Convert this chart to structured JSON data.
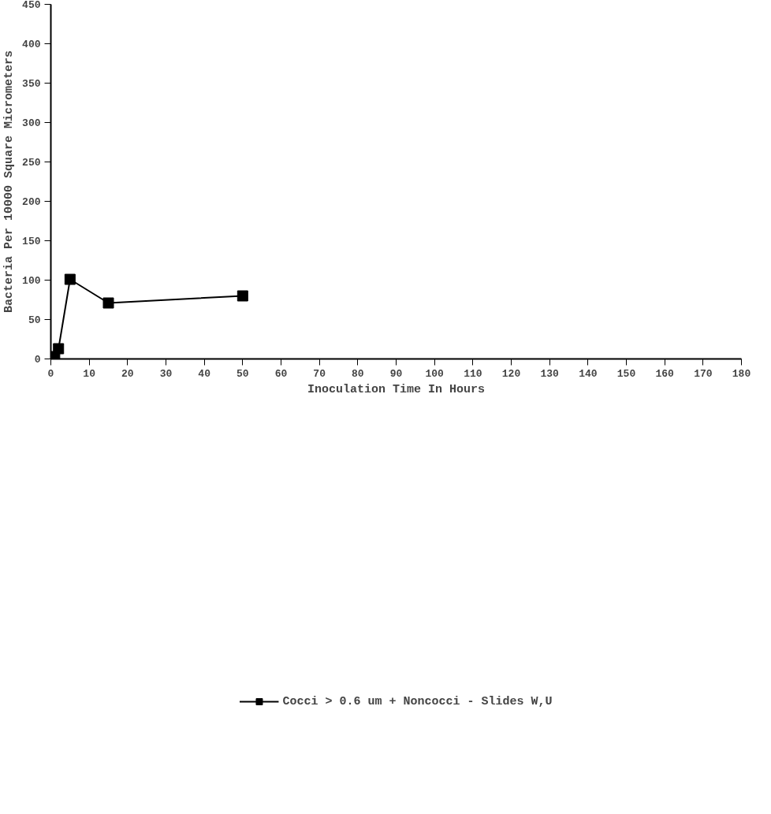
{
  "chart_data": {
    "type": "line",
    "xlabel": "Inoculation Time In Hours",
    "ylabel": "Bacteria Per 10000 Square Micrometers",
    "x": [
      1,
      2,
      5,
      15,
      50
    ],
    "series": [
      {
        "name": "Cocci > 0.6 um + Noncocci - Slides W,U",
        "color": "#000000",
        "values": [
          3,
          13,
          101,
          71,
          80
        ]
      }
    ],
    "xlim": [
      0,
      180
    ],
    "xticks": [
      0,
      10,
      20,
      30,
      40,
      50,
      60,
      70,
      80,
      90,
      100,
      110,
      120,
      130,
      140,
      150,
      160,
      170,
      180
    ],
    "ylim": [
      0,
      450
    ],
    "yticks": [
      0,
      50,
      100,
      150,
      200,
      250,
      300,
      350,
      400,
      450
    ],
    "grid": false,
    "legend": "bottom",
    "marker": "square",
    "line_style": "solid"
  }
}
